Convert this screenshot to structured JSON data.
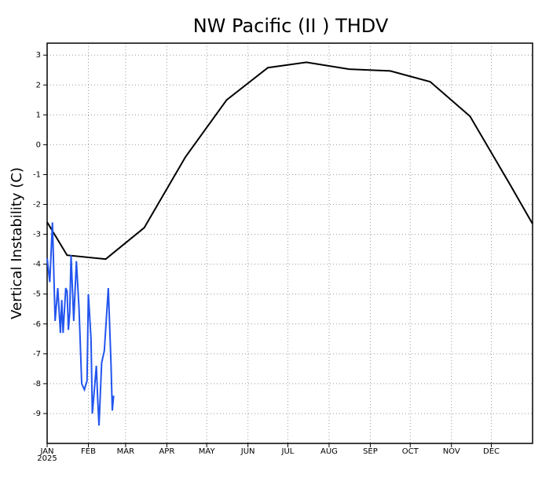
{
  "chart_data": {
    "type": "line",
    "title": "NW Pacific (II ) THDV",
    "y_label": "Vertical Instability (C)",
    "x_sublabel": "2025",
    "xlim": [
      0,
      365
    ],
    "ylim": [
      -10,
      3.4
    ],
    "xticks": [
      {
        "value": 0,
        "label": "JAN"
      },
      {
        "value": 31,
        "label": "FEB"
      },
      {
        "value": 59,
        "label": "MAR"
      },
      {
        "value": 90,
        "label": "APR"
      },
      {
        "value": 120,
        "label": "MAY"
      },
      {
        "value": 151,
        "label": "JUN"
      },
      {
        "value": 181,
        "label": "JUL"
      },
      {
        "value": 212,
        "label": "AUG"
      },
      {
        "value": 243,
        "label": "SEP"
      },
      {
        "value": 273,
        "label": "OCT"
      },
      {
        "value": 304,
        "label": "NOV"
      },
      {
        "value": 334,
        "label": "DEC"
      }
    ],
    "yticks": [
      3,
      2,
      1,
      0,
      -1,
      -2,
      -3,
      -4,
      -5,
      -6,
      -7,
      -8,
      -9
    ],
    "grid": true,
    "series": [
      {
        "color": "#000000",
        "x": [
          0,
          15,
          44,
          73,
          104,
          135,
          166,
          195,
          227,
          258,
          288,
          318,
          348,
          365
        ],
        "values": [
          -2.59,
          -3.7,
          -3.83,
          -2.78,
          -0.41,
          1.5,
          2.58,
          2.76,
          2.53,
          2.47,
          2.11,
          0.95,
          -1.33,
          -2.65
        ]
      },
      {
        "color": "#2255ee",
        "x": [
          0,
          2,
          4,
          6,
          8,
          10,
          11,
          12,
          14,
          15,
          16,
          17,
          18,
          20,
          22,
          24,
          26,
          28,
          30,
          31,
          33,
          34,
          37,
          38,
          39,
          41,
          43,
          46,
          48,
          49,
          50
        ],
        "values": [
          -3.8,
          -4.6,
          -2.6,
          -5.9,
          -4.8,
          -6.3,
          -5.2,
          -6.3,
          -4.8,
          -4.9,
          -6.2,
          -5.6,
          -3.7,
          -5.9,
          -3.9,
          -5.5,
          -8.0,
          -8.2,
          -7.9,
          -5.0,
          -6.5,
          -9.0,
          -7.4,
          -8.5,
          -9.4,
          -7.3,
          -6.9,
          -4.8,
          -7.3,
          -8.9,
          -8.4
        ]
      }
    ]
  }
}
